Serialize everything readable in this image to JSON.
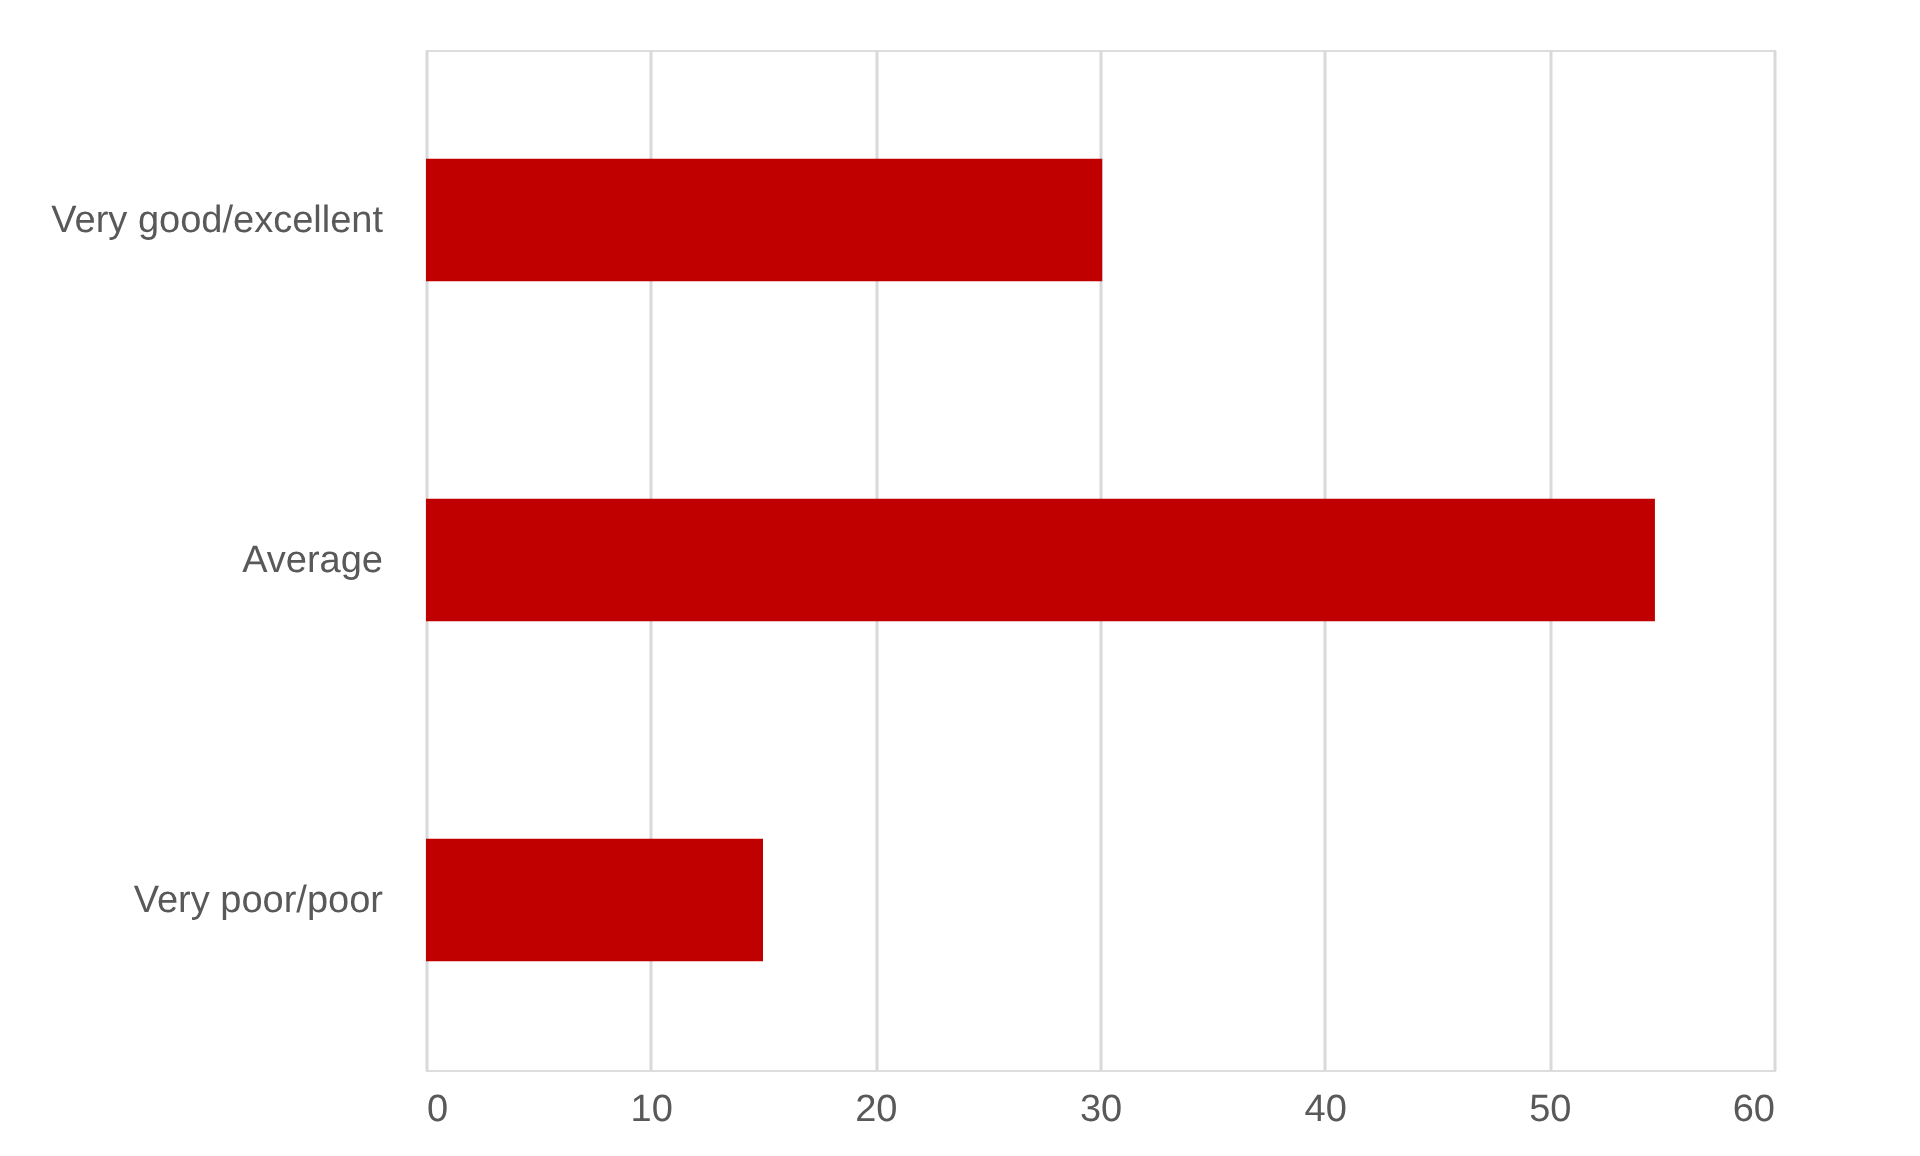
{
  "chart_data": {
    "type": "bar",
    "orientation": "horizontal",
    "categories": [
      "Very good/excellent",
      "Average",
      "Very poor/poor"
    ],
    "values": [
      30.1,
      54.7,
      15.0
    ],
    "color": "#c00000",
    "xlim": [
      0,
      60
    ],
    "xticks": [
      0,
      10,
      20,
      30,
      40,
      50,
      60
    ],
    "grid": "x"
  }
}
